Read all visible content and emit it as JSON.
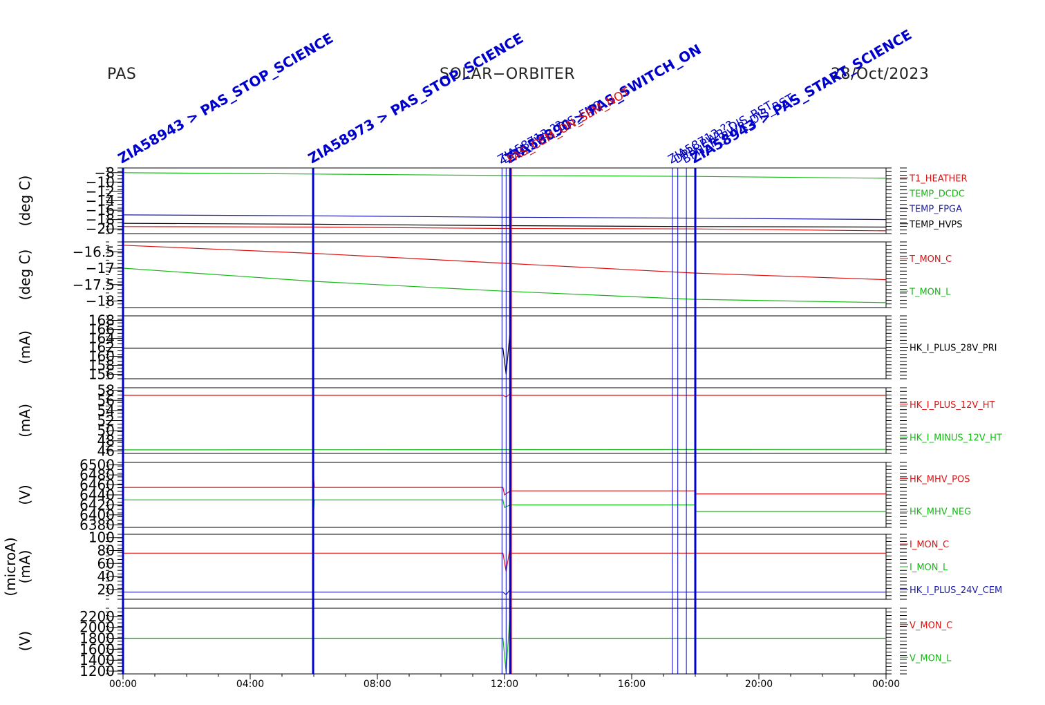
{
  "header": {
    "left": "PAS",
    "center": "SOLAR−ORBITER",
    "right": "28/Oct/2023"
  },
  "colors": {
    "red": "#dd1111",
    "green": "#11bb11",
    "blue": "#1a1aaa",
    "black": "#000000",
    "event_blue": "#0000cc",
    "event_red": "#dd1111"
  },
  "chart_data": {
    "type": "line",
    "x_ticks": [
      "00:00",
      "04:00",
      "08:00",
      "12:00",
      "16:00",
      "20:00",
      "00:00"
    ],
    "x_range_hours": [
      0,
      24
    ],
    "events": [
      {
        "time_h": 0.0,
        "label": "ZIA58943 > PAS_STOP_SCIENCE",
        "color": "blue",
        "thick": true
      },
      {
        "time_h": 5.98,
        "label": "ZIA58973 > PAS_STOP_SCIENCE",
        "color": "blue",
        "thick": true
      },
      {
        "time_h": 11.92,
        "label": "ZIA58713 ??",
        "color": "blue",
        "thick": false
      },
      {
        "time_h": 12.05,
        "label": "DPU_PWR_DIS_FNC",
        "color": "blue",
        "thick": false
      },
      {
        "time_h": 12.18,
        "label": "ZIA58890 > PAS_SWITCH_ON",
        "color": "blue",
        "thick": true
      },
      {
        "time_h": 12.22,
        "label": "PAS_CEM_ON_SEM_NOT",
        "color": "red",
        "thick": false
      },
      {
        "time_h": 17.28,
        "label": "ZIA58713 ??",
        "color": "blue",
        "thick": false
      },
      {
        "time_h": 17.45,
        "label": "DPU_PWR_DIS_RST",
        "color": "blue",
        "thick": false
      },
      {
        "time_h": 17.72,
        "label": "BPNSR_PWR_DIS_RST",
        "color": "blue",
        "thick": false
      },
      {
        "time_h": 18.0,
        "label": "ZIA58943 > PAS_START_SCIENCE",
        "color": "blue",
        "thick": true
      }
    ],
    "panels": [
      {
        "ylabel": "(deg C)",
        "ylim": [
          -21,
          -7
        ],
        "y_ticks": [
          -8,
          -10,
          -12,
          -14,
          -16,
          -18,
          -20
        ],
        "series": [
          {
            "name": "T1_HEATHER",
            "color": "red",
            "points": [
              [
                0,
                -19.5
              ],
              [
                6,
                -19.6
              ],
              [
                12,
                -19.9
              ],
              [
                18,
                -20.0
              ],
              [
                24,
                -20.4
              ]
            ]
          },
          {
            "name": "TEMP_DCDC",
            "color": "green",
            "points": [
              [
                0,
                -8.0
              ],
              [
                6,
                -8.3
              ],
              [
                12,
                -8.6
              ],
              [
                18,
                -8.8
              ],
              [
                24,
                -9.2
              ]
            ]
          },
          {
            "name": "TEMP_FPGA",
            "color": "blue",
            "points": [
              [
                0,
                -17.0
              ],
              [
                6,
                -17.2
              ],
              [
                12,
                -17.5
              ],
              [
                18,
                -17.7
              ],
              [
                24,
                -18.0
              ]
            ]
          },
          {
            "name": "TEMP_HVPS",
            "color": "black",
            "points": [
              [
                0,
                -18.8
              ],
              [
                6,
                -19.0
              ],
              [
                12,
                -19.3
              ],
              [
                18,
                -19.5
              ],
              [
                24,
                -19.6
              ]
            ]
          }
        ]
      },
      {
        "ylabel": "(deg C)",
        "ylim": [
          -18.2,
          -16.2
        ],
        "y_ticks": [
          -16.5,
          -17.0,
          -17.5,
          -18.0
        ],
        "series": [
          {
            "name": "T_MON_C",
            "color": "red",
            "points": [
              [
                0,
                -16.3
              ],
              [
                6,
                -16.55
              ],
              [
                12,
                -16.85
              ],
              [
                18,
                -17.15
              ],
              [
                24,
                -17.35
              ]
            ]
          },
          {
            "name": "T_MON_L",
            "color": "green",
            "points": [
              [
                0,
                -17.0
              ],
              [
                6,
                -17.4
              ],
              [
                12,
                -17.7
              ],
              [
                18,
                -17.95
              ],
              [
                24,
                -18.05
              ]
            ]
          }
        ]
      },
      {
        "ylabel": "(mA)",
        "ylim": [
          155,
          169
        ],
        "y_ticks": [
          156,
          158,
          160,
          162,
          164,
          166,
          168
        ],
        "series": [
          {
            "name": "HK_I_PLUS_28V_PRI",
            "color": "black",
            "points": [
              [
                0,
                161.8
              ],
              [
                11.95,
                161.8
              ],
              [
                12.05,
                156.0
              ],
              [
                12.18,
                166.0
              ],
              [
                12.2,
                161.8
              ],
              [
                24,
                161.8
              ]
            ]
          }
        ]
      },
      {
        "ylabel": "(mA)",
        "ylim": [
          45.5,
          58.5
        ],
        "y_ticks": [
          46,
          48,
          50,
          52,
          54,
          56,
          58
        ],
        "series": [
          {
            "name": "HK_I_PLUS_12V_HT",
            "color": "red",
            "points": [
              [
                0,
                57.0
              ],
              [
                11.95,
                57.0
              ],
              [
                12.05,
                56.7
              ],
              [
                12.18,
                57.3
              ],
              [
                12.2,
                57.0
              ],
              [
                24,
                57.0
              ]
            ]
          },
          {
            "name": "HK_I_MINUS_12V_HT",
            "color": "green",
            "points": [
              [
                0,
                46.2
              ],
              [
                24,
                46.3
              ]
            ]
          }
        ]
      },
      {
        "ylabel": "(V)",
        "ylim": [
          6375,
          6505
        ],
        "y_ticks": [
          6380,
          6400,
          6420,
          6440,
          6460,
          6480,
          6500
        ],
        "series": [
          {
            "name": "HK_MHV_POS",
            "color": "red",
            "points": [
              [
                0,
                6455
              ],
              [
                5.98,
                6455
              ],
              [
                6.0,
                6470
              ],
              [
                6.02,
                6455
              ],
              [
                11.95,
                6455
              ],
              [
                12.0,
                6440
              ],
              [
                12.18,
                6448
              ],
              [
                18.0,
                6448
              ],
              [
                18.02,
                6442
              ],
              [
                24,
                6442
              ]
            ]
          },
          {
            "name": "HK_MHV_NEG",
            "color": "green",
            "points": [
              [
                0,
                6430
              ],
              [
                5.98,
                6430
              ],
              [
                6.0,
                6410
              ],
              [
                6.02,
                6430
              ],
              [
                11.95,
                6430
              ],
              [
                12.0,
                6415
              ],
              [
                12.18,
                6420
              ],
              [
                18.0,
                6420
              ],
              [
                18.02,
                6407
              ],
              [
                24,
                6407
              ]
            ]
          }
        ]
      },
      {
        "ylabel": "(mA)",
        "ylabel2": "(microA)",
        "ylim": [
          5,
          105
        ],
        "y_ticks": [
          20,
          40,
          60,
          80,
          100
        ],
        "series": [
          {
            "name": "I_MON_C",
            "color": "red",
            "points": [
              [
                0,
                76
              ],
              [
                11.95,
                76
              ],
              [
                12.05,
                48
              ],
              [
                12.18,
                86
              ],
              [
                12.2,
                76
              ],
              [
                24,
                76
              ]
            ]
          },
          {
            "name": "I_MON_L",
            "color": "green",
            "points": []
          },
          {
            "name": "HK_I_PLUS_24V_CEM",
            "color": "blue",
            "points": [
              [
                0,
                16
              ],
              [
                11.95,
                16
              ],
              [
                12.05,
                12
              ],
              [
                12.18,
                20
              ],
              [
                12.2,
                16
              ],
              [
                24,
                16
              ]
            ]
          }
        ]
      },
      {
        "ylabel": "(V)",
        "ylim": [
          1150,
          2350
        ],
        "y_ticks": [
          1200,
          1400,
          1600,
          1800,
          2000,
          2200
        ],
        "series": [
          {
            "name": "V_MON_C",
            "color": "red",
            "points": []
          },
          {
            "name": "V_MON_L",
            "color": "green",
            "points": [
              [
                0,
                1800
              ],
              [
                11.95,
                1800
              ],
              [
                12.05,
                1180
              ],
              [
                12.18,
                2300
              ],
              [
                12.2,
                1800
              ],
              [
                24,
                1800
              ]
            ]
          }
        ]
      }
    ]
  }
}
